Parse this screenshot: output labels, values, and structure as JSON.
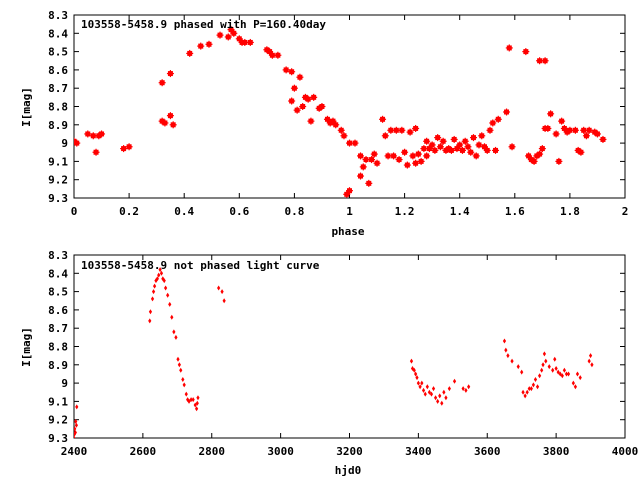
{
  "chart_data": [
    {
      "type": "scatter",
      "title": "103558-5458.9 phased with P=160.40day",
      "xlabel": "phase",
      "ylabel": "I[mag]",
      "xlim": [
        0,
        2
      ],
      "ylim": [
        8.3,
        9.3
      ],
      "y_inverted": true,
      "x_ticks": [
        "0",
        "0.2",
        "0.4",
        "0.6",
        "0.8",
        "1",
        "1.2",
        "1.4",
        "1.6",
        "1.8",
        "2"
      ],
      "y_ticks": [
        "8.3",
        "8.4",
        "8.5",
        "8.6",
        "8.7",
        "8.8",
        "8.9",
        "9",
        "9.1",
        "9.2",
        "9.3"
      ],
      "marker_color": "#ff0000",
      "grid": false,
      "points": [
        [
          0.0,
          8.99
        ],
        [
          0.01,
          9.0
        ],
        [
          0.05,
          8.95
        ],
        [
          0.07,
          8.96
        ],
        [
          0.08,
          9.05
        ],
        [
          0.09,
          8.96
        ],
        [
          0.1,
          8.95
        ],
        [
          0.18,
          9.03
        ],
        [
          0.2,
          9.02
        ],
        [
          0.32,
          8.67
        ],
        [
          0.32,
          8.88
        ],
        [
          0.33,
          8.89
        ],
        [
          0.35,
          8.85
        ],
        [
          0.35,
          8.62
        ],
        [
          0.36,
          8.9
        ],
        [
          0.42,
          8.51
        ],
        [
          0.46,
          8.47
        ],
        [
          0.49,
          8.46
        ],
        [
          0.53,
          8.41
        ],
        [
          0.56,
          8.42
        ],
        [
          0.57,
          8.38
        ],
        [
          0.58,
          8.4
        ],
        [
          0.6,
          8.43
        ],
        [
          0.61,
          8.45
        ],
        [
          0.62,
          8.45
        ],
        [
          0.64,
          8.45
        ],
        [
          0.7,
          8.49
        ],
        [
          0.71,
          8.5
        ],
        [
          0.72,
          8.52
        ],
        [
          0.74,
          8.52
        ],
        [
          0.77,
          8.6
        ],
        [
          0.79,
          8.77
        ],
        [
          0.79,
          8.61
        ],
        [
          0.8,
          8.7
        ],
        [
          0.81,
          8.82
        ],
        [
          0.82,
          8.64
        ],
        [
          0.83,
          8.8
        ],
        [
          0.84,
          8.75
        ],
        [
          0.85,
          8.76
        ],
        [
          0.86,
          8.88
        ],
        [
          0.87,
          8.75
        ],
        [
          0.89,
          8.81
        ],
        [
          0.9,
          8.8
        ],
        [
          0.92,
          8.87
        ],
        [
          0.93,
          8.89
        ],
        [
          0.94,
          8.88
        ],
        [
          0.95,
          8.9
        ],
        [
          0.97,
          8.93
        ],
        [
          0.98,
          8.96
        ],
        [
          0.99,
          9.28
        ],
        [
          1.0,
          9.26
        ],
        [
          1.0,
          9.0
        ],
        [
          1.02,
          9.0
        ],
        [
          1.04,
          9.07
        ],
        [
          1.04,
          9.18
        ],
        [
          1.05,
          9.13
        ],
        [
          1.06,
          9.09
        ],
        [
          1.07,
          9.22
        ],
        [
          1.08,
          9.09
        ],
        [
          1.09,
          9.06
        ],
        [
          1.1,
          9.11
        ],
        [
          1.12,
          8.87
        ],
        [
          1.13,
          8.96
        ],
        [
          1.14,
          9.07
        ],
        [
          1.15,
          8.93
        ],
        [
          1.16,
          9.07
        ],
        [
          1.17,
          8.93
        ],
        [
          1.18,
          9.09
        ],
        [
          1.19,
          8.93
        ],
        [
          1.2,
          9.05
        ],
        [
          1.21,
          9.12
        ],
        [
          1.22,
          8.94
        ],
        [
          1.23,
          9.07
        ],
        [
          1.24,
          9.11
        ],
        [
          1.24,
          8.92
        ],
        [
          1.25,
          9.06
        ],
        [
          1.26,
          9.1
        ],
        [
          1.27,
          9.03
        ],
        [
          1.28,
          9.07
        ],
        [
          1.28,
          8.99
        ],
        [
          1.29,
          9.03
        ],
        [
          1.3,
          9.01
        ],
        [
          1.31,
          9.04
        ],
        [
          1.32,
          8.97
        ],
        [
          1.33,
          9.02
        ],
        [
          1.34,
          8.99
        ],
        [
          1.35,
          9.04
        ],
        [
          1.36,
          9.03
        ],
        [
          1.37,
          9.04
        ],
        [
          1.38,
          8.98
        ],
        [
          1.39,
          9.03
        ],
        [
          1.4,
          9.01
        ],
        [
          1.41,
          9.04
        ],
        [
          1.42,
          8.99
        ],
        [
          1.43,
          9.02
        ],
        [
          1.44,
          9.05
        ],
        [
          1.45,
          8.97
        ],
        [
          1.46,
          9.07
        ],
        [
          1.47,
          9.01
        ],
        [
          1.48,
          8.96
        ],
        [
          1.49,
          9.02
        ],
        [
          1.5,
          9.04
        ],
        [
          1.51,
          8.93
        ],
        [
          1.52,
          8.89
        ],
        [
          1.53,
          9.04
        ],
        [
          1.54,
          8.87
        ],
        [
          1.57,
          8.83
        ],
        [
          1.58,
          8.48
        ],
        [
          1.59,
          9.02
        ],
        [
          1.64,
          8.5
        ],
        [
          1.65,
          9.07
        ],
        [
          1.66,
          9.09
        ],
        [
          1.67,
          9.1
        ],
        [
          1.68,
          9.07
        ],
        [
          1.69,
          8.55
        ],
        [
          1.69,
          9.06
        ],
        [
          1.7,
          9.03
        ],
        [
          1.71,
          8.92
        ],
        [
          1.71,
          8.55
        ],
        [
          1.72,
          8.92
        ],
        [
          1.73,
          8.84
        ],
        [
          1.75,
          8.95
        ],
        [
          1.76,
          9.1
        ],
        [
          1.77,
          8.88
        ],
        [
          1.78,
          8.92
        ],
        [
          1.79,
          8.94
        ],
        [
          1.8,
          8.93
        ],
        [
          1.82,
          8.93
        ],
        [
          1.83,
          9.04
        ],
        [
          1.84,
          9.05
        ],
        [
          1.85,
          8.93
        ],
        [
          1.86,
          8.96
        ],
        [
          1.87,
          8.93
        ],
        [
          1.89,
          8.94
        ],
        [
          1.9,
          8.95
        ],
        [
          1.92,
          8.98
        ]
      ]
    },
    {
      "type": "scatter",
      "title": "103558-5458.9 not phased light curve",
      "xlabel": "hjd0",
      "ylabel": "I[mag]",
      "xlim": [
        2400,
        4000
      ],
      "ylim": [
        8.3,
        9.3
      ],
      "y_inverted": true,
      "x_ticks": [
        "2400",
        "2600",
        "2800",
        "3000",
        "3200",
        "3400",
        "3600",
        "3800",
        "4000"
      ],
      "y_ticks": [
        "8.3",
        "8.4",
        "8.5",
        "8.6",
        "8.7",
        "8.8",
        "8.9",
        "9",
        "9.1",
        "9.2",
        "9.3"
      ],
      "marker_color": "#ff0000",
      "grid": false,
      "points": [
        [
          2400,
          9.3
        ],
        [
          2401,
          9.28
        ],
        [
          2402,
          9.25
        ],
        [
          2404,
          9.27
        ],
        [
          2405,
          9.21
        ],
        [
          2407,
          9.23
        ],
        [
          2408,
          9.13
        ],
        [
          2620,
          8.66
        ],
        [
          2622,
          8.61
        ],
        [
          2628,
          8.54
        ],
        [
          2631,
          8.5
        ],
        [
          2634,
          8.47
        ],
        [
          2638,
          8.44
        ],
        [
          2642,
          8.43
        ],
        [
          2646,
          8.41
        ],
        [
          2650,
          8.38
        ],
        [
          2654,
          8.4
        ],
        [
          2658,
          8.43
        ],
        [
          2662,
          8.44
        ],
        [
          2666,
          8.48
        ],
        [
          2672,
          8.52
        ],
        [
          2678,
          8.57
        ],
        [
          2684,
          8.64
        ],
        [
          2690,
          8.72
        ],
        [
          2696,
          8.75
        ],
        [
          2702,
          8.87
        ],
        [
          2706,
          8.9
        ],
        [
          2710,
          8.93
        ],
        [
          2716,
          8.98
        ],
        [
          2720,
          9.01
        ],
        [
          2726,
          9.06
        ],
        [
          2730,
          9.09
        ],
        [
          2734,
          9.1
        ],
        [
          2740,
          9.09
        ],
        [
          2746,
          9.09
        ],
        [
          2752,
          9.12
        ],
        [
          2756,
          9.14
        ],
        [
          2758,
          9.11
        ],
        [
          2760,
          9.08
        ],
        [
          2820,
          8.48
        ],
        [
          2830,
          8.5
        ],
        [
          2836,
          8.55
        ],
        [
          3380,
          8.88
        ],
        [
          3383,
          8.92
        ],
        [
          3388,
          8.93
        ],
        [
          3392,
          8.95
        ],
        [
          3396,
          8.97
        ],
        [
          3400,
          9.0
        ],
        [
          3405,
          9.02
        ],
        [
          3410,
          9.0
        ],
        [
          3415,
          9.04
        ],
        [
          3420,
          9.06
        ],
        [
          3426,
          9.02
        ],
        [
          3432,
          9.05
        ],
        [
          3438,
          9.06
        ],
        [
          3444,
          9.03
        ],
        [
          3450,
          9.08
        ],
        [
          3456,
          9.1
        ],
        [
          3462,
          9.07
        ],
        [
          3468,
          9.11
        ],
        [
          3474,
          9.05
        ],
        [
          3480,
          9.08
        ],
        [
          3490,
          9.03
        ],
        [
          3505,
          8.99
        ],
        [
          3530,
          9.03
        ],
        [
          3538,
          9.04
        ],
        [
          3546,
          9.02
        ],
        [
          3650,
          8.77
        ],
        [
          3654,
          8.82
        ],
        [
          3660,
          8.85
        ],
        [
          3672,
          8.88
        ],
        [
          3690,
          8.91
        ],
        [
          3700,
          8.94
        ],
        [
          3704,
          9.05
        ],
        [
          3710,
          9.07
        ],
        [
          3716,
          9.05
        ],
        [
          3722,
          9.03
        ],
        [
          3728,
          9.03
        ],
        [
          3734,
          9.01
        ],
        [
          3740,
          8.98
        ],
        [
          3746,
          9.02
        ],
        [
          3752,
          8.96
        ],
        [
          3758,
          8.93
        ],
        [
          3762,
          8.9
        ],
        [
          3766,
          8.84
        ],
        [
          3770,
          8.88
        ],
        [
          3780,
          8.91
        ],
        [
          3790,
          8.93
        ],
        [
          3796,
          8.87
        ],
        [
          3800,
          8.92
        ],
        [
          3806,
          8.94
        ],
        [
          3812,
          8.95
        ],
        [
          3818,
          8.96
        ],
        [
          3824,
          8.93
        ],
        [
          3830,
          8.95
        ],
        [
          3836,
          8.95
        ],
        [
          3850,
          9.0
        ],
        [
          3856,
          9.02
        ],
        [
          3862,
          8.95
        ],
        [
          3870,
          8.97
        ],
        [
          3896,
          8.88
        ],
        [
          3900,
          8.85
        ],
        [
          3904,
          8.9
        ]
      ]
    }
  ]
}
